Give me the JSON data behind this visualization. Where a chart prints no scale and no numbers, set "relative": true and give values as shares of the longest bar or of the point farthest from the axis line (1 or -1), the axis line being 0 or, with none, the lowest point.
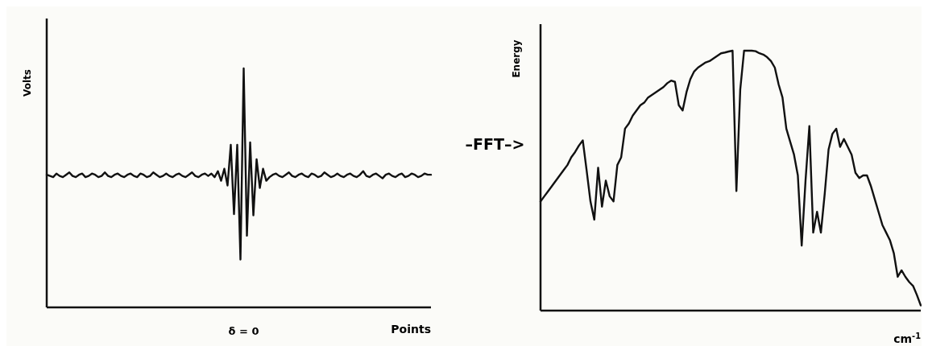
{
  "chart_data": [
    {
      "type": "line",
      "xlabel": "Points",
      "ylabel": "Volts",
      "relative": true,
      "annotations": [
        "δ = 0",
        "–FFT–>"
      ],
      "categories": [
        null,
        null,
        null,
        null,
        null,
        null,
        null,
        null,
        null,
        null,
        null,
        null,
        null,
        null,
        null,
        null,
        null,
        null,
        null,
        null,
        null,
        null,
        null,
        null,
        null,
        null,
        null,
        null,
        null,
        null,
        null,
        null,
        null,
        null,
        null,
        null,
        null,
        null,
        null,
        null,
        null,
        null,
        null,
        null,
        null,
        null,
        null,
        null,
        null,
        null,
        null,
        null,
        null,
        null,
        null,
        null,
        null,
        null,
        null,
        null,
        null,
        null,
        null,
        null,
        null,
        null,
        null,
        null,
        null,
        null,
        null,
        null,
        null,
        null,
        null,
        null,
        null,
        null,
        null,
        null,
        null,
        null,
        null,
        null,
        null,
        null,
        null,
        null,
        null,
        null,
        null,
        null,
        null,
        null,
        null,
        null,
        null,
        null,
        null,
        null,
        null,
        null,
        null,
        null,
        null,
        null,
        null,
        null,
        null,
        null,
        null,
        null,
        null,
        null,
        null,
        null,
        null,
        null,
        null,
        null
      ],
      "series": [
        {
          "color": "#111111",
          "values": [
            0.555,
            0.55,
            0.545,
            0.56,
            0.55,
            0.545,
            0.555,
            0.565,
            0.55,
            0.545,
            0.555,
            0.56,
            0.545,
            0.55,
            0.56,
            0.555,
            0.545,
            0.55,
            0.565,
            0.55,
            0.545,
            0.555,
            0.56,
            0.55,
            0.545,
            0.555,
            0.56,
            0.55,
            0.545,
            0.56,
            0.555,
            0.545,
            0.55,
            0.565,
            0.555,
            0.545,
            0.55,
            0.56,
            0.55,
            0.545,
            0.555,
            0.56,
            0.55,
            0.545,
            0.555,
            0.565,
            0.55,
            0.545,
            0.555,
            0.56,
            0.55,
            0.56,
            0.545,
            0.57,
            0.53,
            0.58,
            0.51,
            0.68,
            0.39,
            0.68,
            0.2,
            1.0,
            0.3,
            0.69,
            0.385,
            0.62,
            0.5,
            0.58,
            0.53,
            0.545,
            0.555,
            0.56,
            0.55,
            0.545,
            0.555,
            0.565,
            0.55,
            0.545,
            0.555,
            0.56,
            0.55,
            0.545,
            0.56,
            0.555,
            0.545,
            0.55,
            0.565,
            0.555,
            0.545,
            0.55,
            0.56,
            0.55,
            0.545,
            0.555,
            0.56,
            0.55,
            0.545,
            0.555,
            0.57,
            0.55,
            0.545,
            0.555,
            0.56,
            0.55,
            0.54,
            0.555,
            0.56,
            0.55,
            0.545,
            0.555,
            0.56,
            0.545,
            0.55,
            0.56,
            0.555,
            0.545,
            0.55,
            0.56,
            0.555,
            0.555
          ]
        }
      ]
    },
    {
      "type": "line",
      "xlabel": "cm$^{-1}$",
      "ylabel": "Energy",
      "relative": true,
      "categories": [
        null,
        null,
        null,
        null,
        null,
        null,
        null,
        null,
        null,
        null,
        null,
        null,
        null,
        null,
        null,
        null,
        null,
        null,
        null,
        null,
        null,
        null,
        null,
        null,
        null,
        null,
        null,
        null,
        null,
        null,
        null,
        null,
        null,
        null,
        null,
        null,
        null,
        null,
        null,
        null,
        null,
        null,
        null,
        null,
        null,
        null,
        null,
        null,
        null,
        null,
        null,
        null,
        null,
        null,
        null,
        null,
        null,
        null,
        null,
        null,
        null,
        null,
        null,
        null,
        null,
        null,
        null,
        null,
        null,
        null,
        null,
        null,
        null,
        null,
        null,
        null,
        null,
        null,
        null,
        null,
        null,
        null,
        null,
        null,
        null,
        null,
        null,
        null,
        null,
        null,
        null,
        null,
        null,
        null,
        null,
        null,
        null,
        null,
        null,
        null
      ],
      "series": [
        {
          "color": "#111111",
          "values": [
            0.42,
            0.44,
            0.46,
            0.48,
            0.5,
            0.52,
            0.54,
            0.56,
            0.59,
            0.61,
            0.635,
            0.655,
            0.54,
            0.42,
            0.35,
            0.55,
            0.4,
            0.5,
            0.44,
            0.42,
            0.56,
            0.59,
            0.7,
            0.72,
            0.75,
            0.77,
            0.79,
            0.8,
            0.82,
            0.83,
            0.84,
            0.85,
            0.86,
            0.875,
            0.885,
            0.88,
            0.79,
            0.77,
            0.84,
            0.89,
            0.92,
            0.935,
            0.945,
            0.955,
            0.96,
            0.97,
            0.98,
            0.99,
            0.993,
            0.997,
            1.0,
            0.46,
            0.85,
            1.0,
            1.0,
            1.0,
            0.998,
            0.99,
            0.985,
            0.975,
            0.96,
            0.935,
            0.87,
            0.82,
            0.7,
            0.65,
            0.6,
            0.52,
            0.25,
            0.5,
            0.71,
            0.3,
            0.38,
            0.3,
            0.45,
            0.62,
            0.68,
            0.7,
            0.63,
            0.66,
            0.63,
            0.6,
            0.53,
            0.51,
            0.52,
            0.52,
            0.48,
            0.43,
            0.38,
            0.33,
            0.3,
            0.27,
            0.22,
            0.13,
            0.155,
            0.13,
            0.11,
            0.095,
            0.06,
            0.02
          ]
        }
      ]
    }
  ]
}
